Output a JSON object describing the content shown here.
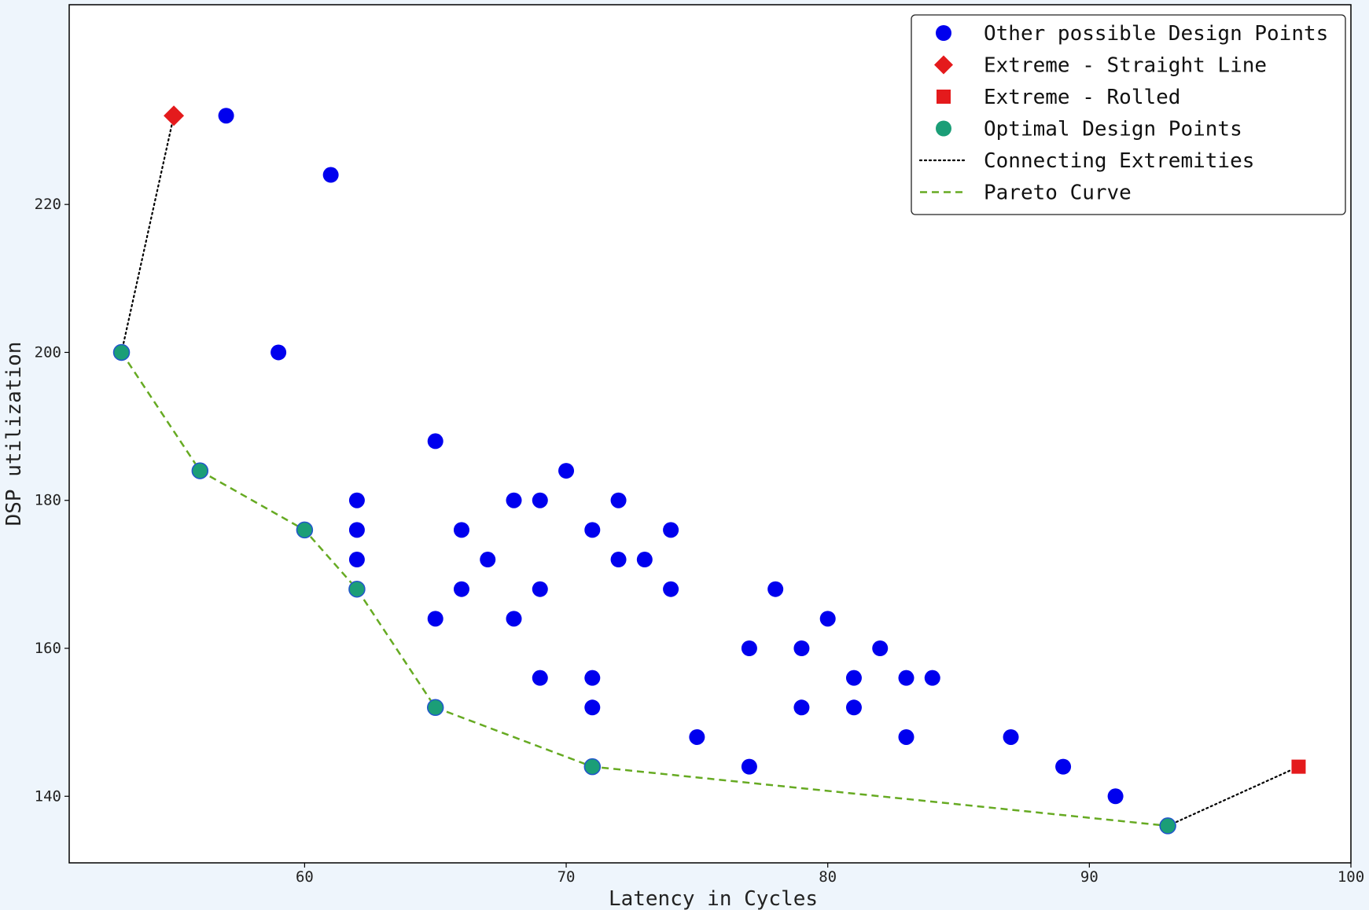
{
  "chart_data": {
    "type": "scatter",
    "title": "",
    "xlabel": "Latency in Cycles",
    "ylabel": "DSP utilization",
    "xlim": [
      51,
      100
    ],
    "ylim": [
      131,
      247
    ],
    "xticks": [
      60,
      70,
      80,
      90,
      100
    ],
    "yticks": [
      140,
      160,
      180,
      200,
      220
    ],
    "grid": false,
    "legend_position": "top-right",
    "colors": {
      "other": "#0000ee",
      "extreme": "#e41a1c",
      "optimal": "#1b9e77",
      "optimal_edge": "#2255cc",
      "pareto": "#66aa22",
      "connect": "#000000",
      "axes": "#000000"
    },
    "series": [
      {
        "name": "Other possible Design Points",
        "marker": "circle",
        "points": [
          [
            57,
            232
          ],
          [
            61,
            224
          ],
          [
            59,
            200
          ],
          [
            65,
            188
          ],
          [
            70,
            184
          ],
          [
            62,
            180
          ],
          [
            68,
            180
          ],
          [
            69,
            180
          ],
          [
            72,
            180
          ],
          [
            62,
            176
          ],
          [
            66,
            176
          ],
          [
            71,
            176
          ],
          [
            74,
            176
          ],
          [
            62,
            172
          ],
          [
            67,
            172
          ],
          [
            72,
            172
          ],
          [
            73,
            172
          ],
          [
            66,
            168
          ],
          [
            69,
            168
          ],
          [
            74,
            168
          ],
          [
            78,
            168
          ],
          [
            65,
            164
          ],
          [
            68,
            164
          ],
          [
            80,
            164
          ],
          [
            77,
            160
          ],
          [
            79,
            160
          ],
          [
            82,
            160
          ],
          [
            69,
            156
          ],
          [
            71,
            156
          ],
          [
            81,
            156
          ],
          [
            83,
            156
          ],
          [
            84,
            156
          ],
          [
            71,
            152
          ],
          [
            79,
            152
          ],
          [
            81,
            152
          ],
          [
            75,
            148
          ],
          [
            83,
            148
          ],
          [
            87,
            148
          ],
          [
            77,
            144
          ],
          [
            89,
            144
          ],
          [
            91,
            140
          ]
        ]
      },
      {
        "name": "Extreme - Straight Line",
        "marker": "diamond",
        "points": [
          [
            55,
            232
          ]
        ]
      },
      {
        "name": "Extreme - Rolled",
        "marker": "square",
        "points": [
          [
            98,
            144
          ]
        ]
      },
      {
        "name": "Optimal Design Points",
        "marker": "circle",
        "points": [
          [
            53,
            200
          ],
          [
            56,
            184
          ],
          [
            60,
            176
          ],
          [
            62,
            168
          ],
          [
            65,
            152
          ],
          [
            71,
            144
          ],
          [
            93,
            136
          ]
        ]
      }
    ],
    "lines": [
      {
        "name": "Connecting Extremities",
        "style": "dotted",
        "segments": [
          [
            [
              53,
              200
            ],
            [
              55,
              232
            ]
          ],
          [
            [
              93,
              136
            ],
            [
              98,
              144
            ]
          ]
        ]
      },
      {
        "name": "Pareto Curve",
        "style": "dashed",
        "points": [
          [
            53,
            200
          ],
          [
            56,
            184
          ],
          [
            60,
            176
          ],
          [
            62,
            168
          ],
          [
            65,
            152
          ],
          [
            71,
            144
          ],
          [
            93,
            136
          ]
        ]
      }
    ],
    "legend": [
      {
        "label": "Other possible Design Points",
        "kind": "circle-blue"
      },
      {
        "label": "Extreme - Straight Line",
        "kind": "diamond-red"
      },
      {
        "label": "Extreme - Rolled",
        "kind": "square-red"
      },
      {
        "label": "Optimal Design Points",
        "kind": "circle-green"
      },
      {
        "label": "Connecting Extremities",
        "kind": "line-dotted"
      },
      {
        "label": "Pareto Curve",
        "kind": "line-dashed"
      }
    ]
  }
}
